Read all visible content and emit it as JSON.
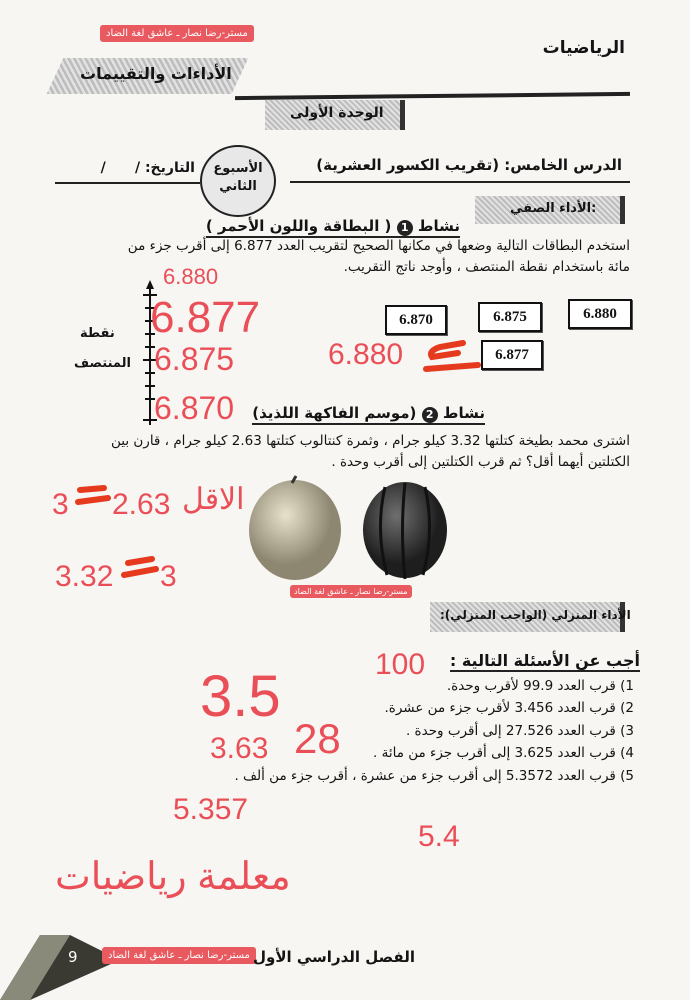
{
  "watermark": "مستر-رضا نصار ـ عاشق لغة الضاد",
  "header": {
    "subject": "الرياضيات",
    "banner": "الأداءات والتقييمات",
    "unit": "الوحدة الأولى",
    "lesson_label": "الدرس الخامس:",
    "lesson_title": "(تقريب الكسور العشرية)",
    "week_line1": "الأسبوع",
    "week_line2": "الثاني",
    "date_label": "التاريخ:",
    "date_slashes": "/      /"
  },
  "classwork": {
    "label": "الأداء الصفي:",
    "activity1": {
      "word": "نشاط",
      "number": "1",
      "title": "( البطاقة واللون الأحمر )",
      "text_line1": "استخدم البطاقات التالية وضعها في مكانها الصحيح لتقريب العدد 6.877 إلى أقرب جزء من",
      "text_line2": "مائة باستخدام نقطة المنتصف ، وأوجد ناتج التقريب.",
      "midpoint_label1": "نقطة",
      "midpoint_label2": "المنتصف",
      "cards": [
        "6.870",
        "6.875",
        "6.880",
        "6.877"
      ]
    },
    "activity2": {
      "word": "نشاط",
      "number": "2",
      "title": "(موسم الفاكهة اللذيذ)",
      "text_line1": "اشترى محمد بطيخة كتلتها 3.32 كيلو جرام ، وثمرة كنتالوب كتلتها 2.63 كيلو جرام ، قارن بين",
      "text_line2": "الكتلتين أيهما أقل؟ ثم قرب الكتلتين إلى أقرب وحدة ."
    }
  },
  "homework": {
    "label": "الأداء المنزلي (الواجب المنزلي):",
    "heading": "أجب عن الأسئلة التالية :",
    "questions": [
      "1) قرب العدد 99.9 لأقرب وحدة.",
      "2) قرب العدد 3.456 لأقرب جزء من عشرة.",
      "3) قرب العدد 27.526 إلى أقرب وحدة .",
      "4) قرب العدد 3.625 إلى أقرب جزء من مائة .",
      "5) قرب العدد 5.3572 إلى أقرب جزء من عشرة ، أقرب جزء من ألف ."
    ]
  },
  "handwritten": {
    "nl_top": "6.880",
    "nl_value": "6.877",
    "nl_mid": "6.875",
    "nl_bottom": "6.870",
    "card_answer": "6.880",
    "less_word": "الاقل",
    "cantaloupe": "2.63",
    "cantaloupe_round": "3",
    "melon": "3.32",
    "melon_round": "3",
    "hw1": "100",
    "hw2": "3.5",
    "hw3": "28",
    "hw4": "3.63",
    "hw5a": "5.4",
    "hw5b": "5.357",
    "signature": "معلمة رياضيات"
  },
  "footer": {
    "page_number": "9",
    "term": "الفصل الدراسي الأول"
  },
  "colors": {
    "handwriting": "#ea4f58",
    "scribble": "#e63a1f",
    "watermark_bg": "#e85a5f"
  }
}
